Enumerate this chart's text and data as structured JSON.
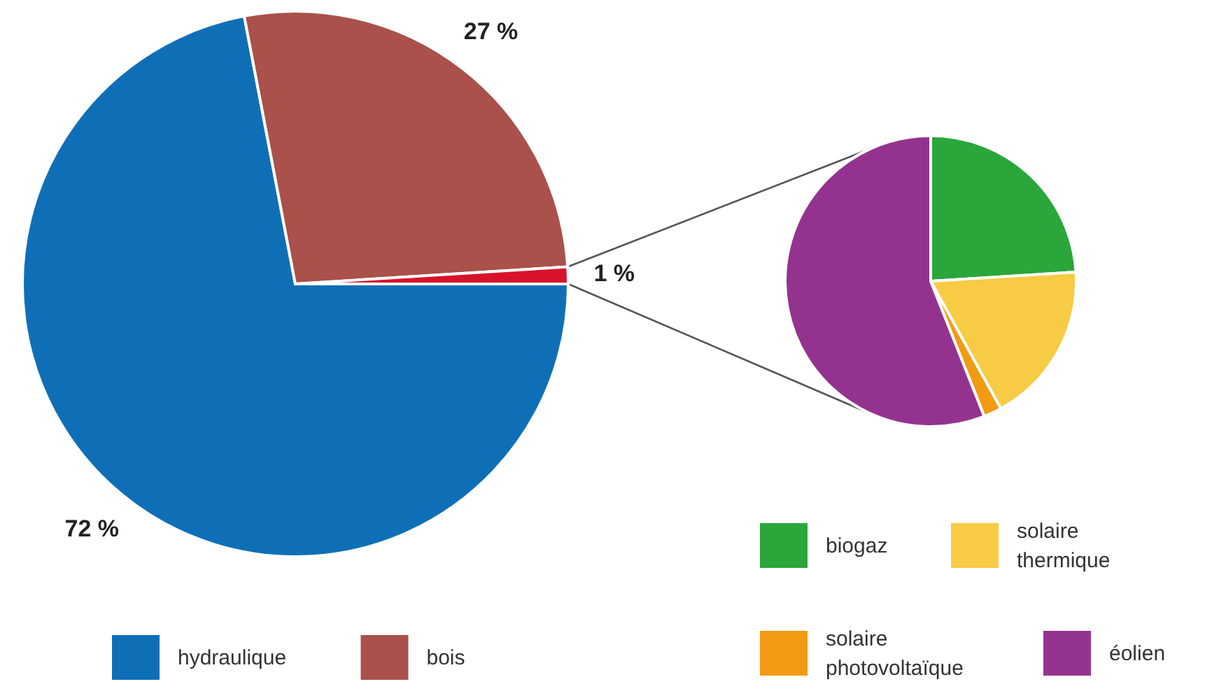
{
  "chart_data": [
    {
      "type": "pie",
      "categories": [
        "hydraulique",
        "bois",
        null
      ],
      "values": [
        72,
        27,
        1
      ],
      "colors": [
        "#0f6fb6",
        "#a9514a",
        "#d7132b"
      ],
      "value_labels": [
        "72 %",
        "27 %",
        "1 %"
      ],
      "legend": "bottom"
    },
    {
      "type": "pie",
      "categories": [
        "biogaz",
        "solaire thermique",
        "solaire photovoltaïque",
        "éolien"
      ],
      "values": [
        24,
        18,
        2,
        56
      ],
      "colors": [
        "#2aa63a",
        "#f8cb45",
        "#f29a12",
        "#94338f"
      ],
      "legend": "bottom"
    }
  ]
}
